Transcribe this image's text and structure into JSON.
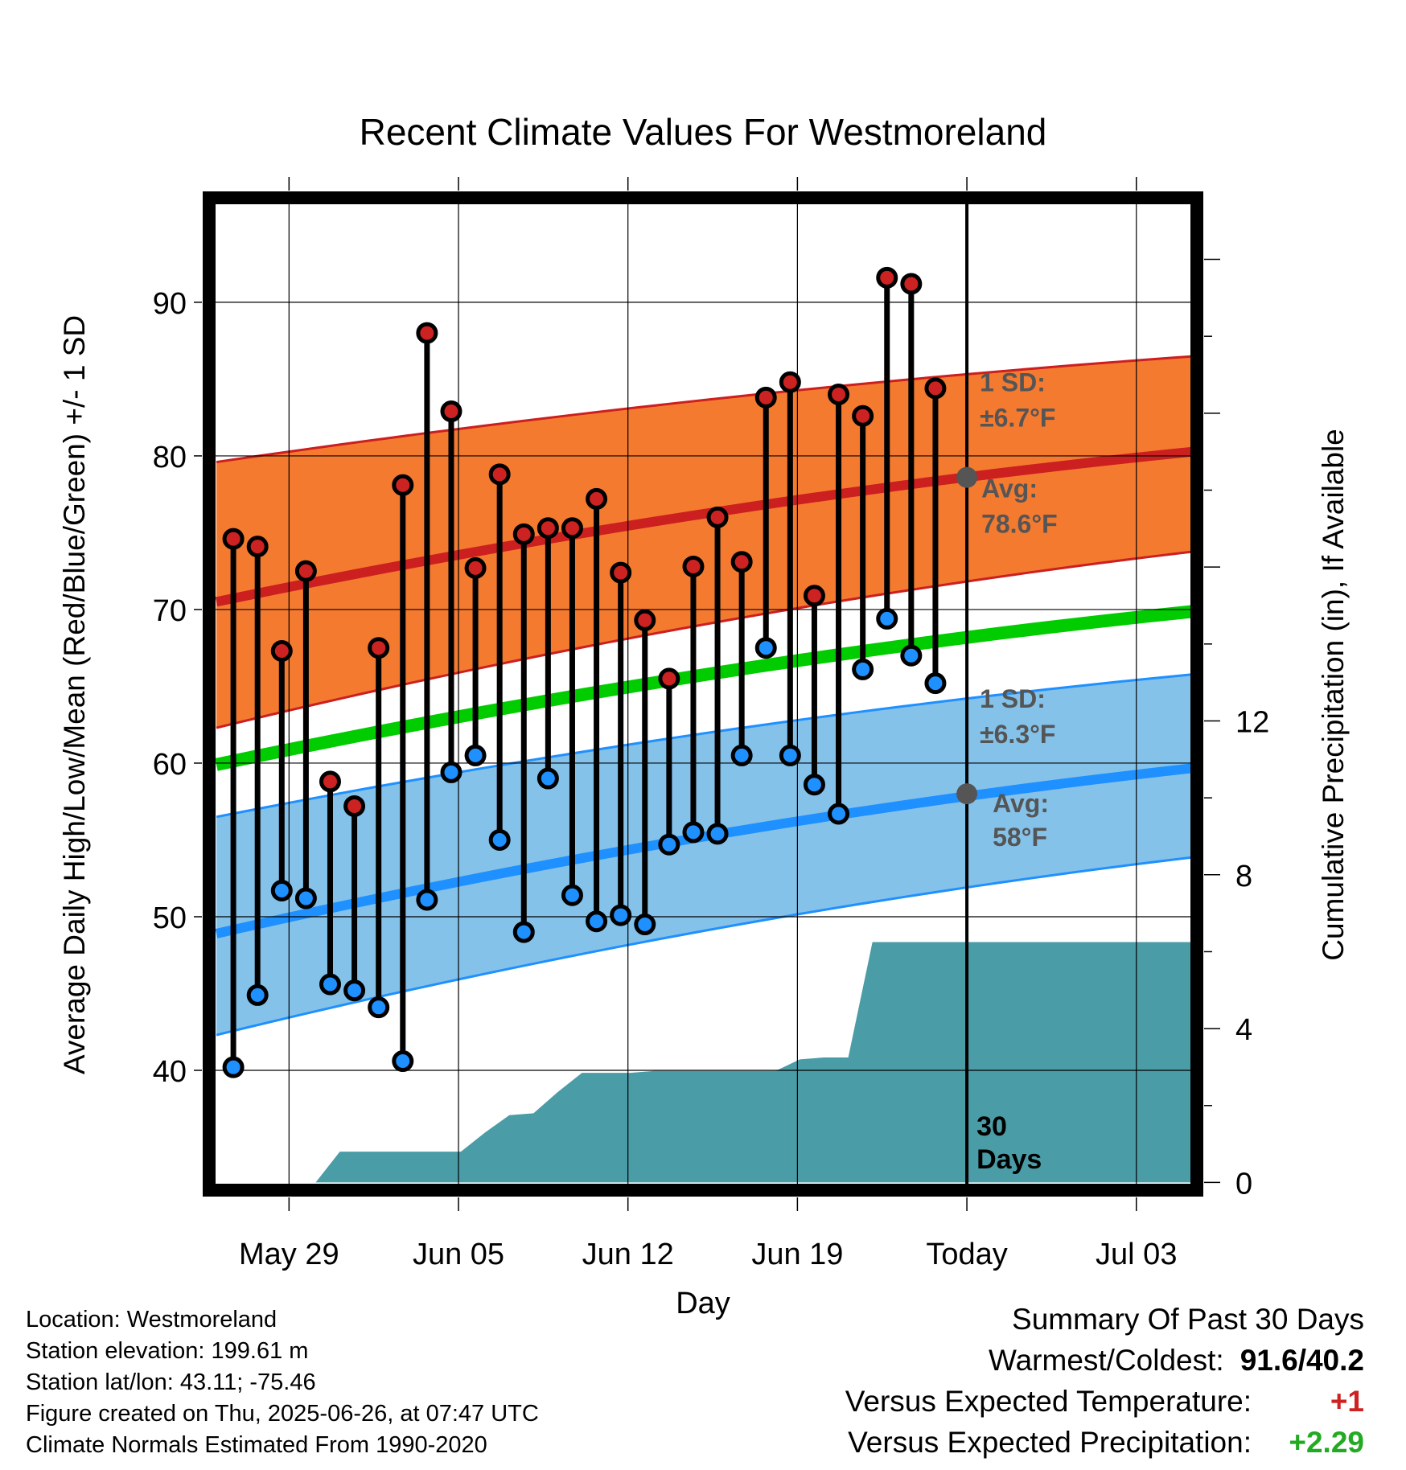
{
  "chart_data": {
    "type": "line",
    "title": "Recent Climate Values For Westmoreland",
    "xlabel": "Day",
    "ylabel": "Average Daily High/Low/Mean (Red/Blue/Green) +/- 1 SD",
    "y2label": "Cumulative Precipitation (in), If Available",
    "x_ticks": [
      "May 29",
      "Jun 05",
      "Jun 12",
      "Jun 19",
      "Today",
      "Jul 03"
    ],
    "x_tick_days": [
      3,
      10,
      17,
      24,
      31,
      38
    ],
    "xlim": [
      -0.3,
      40.5
    ],
    "ylim": [
      32.2,
      96.8
    ],
    "y_ticks": [
      40,
      50,
      60,
      70,
      80,
      90
    ],
    "y2lim": [
      -0.2,
      25.6
    ],
    "y2_ticks": [
      0,
      4,
      8,
      12
    ],
    "grid": true,
    "today_day": 31,
    "today_marker_label": "30 Days",
    "normals": {
      "days": [
        0,
        40.5
      ],
      "high_avg": [
        70.5,
        80.3
      ],
      "high_sd_upper": [
        79.6,
        86.5
      ],
      "high_sd_lower": [
        62.3,
        73.8
      ],
      "mean_avg": [
        59.9,
        69.9
      ],
      "low_avg": [
        48.9,
        59.7
      ],
      "low_sd_upper": [
        56.5,
        65.8
      ],
      "low_sd_lower": [
        42.3,
        53.9
      ]
    },
    "annotations": {
      "high_sd": "1 SD:",
      "high_sd_value": "±6.7°F",
      "high_avg": "Avg:",
      "high_avg_value": "78.6°F",
      "high_avg_point": 78.6,
      "low_sd": "1 SD:",
      "low_sd_value": "±6.3°F",
      "low_avg": "Avg:",
      "low_avg_value": "58°F",
      "low_avg_point": 58.0
    },
    "observations": {
      "days": [
        0.7,
        1.7,
        2.7,
        3.7,
        4.7,
        5.7,
        6.7,
        7.7,
        8.7,
        9.7,
        10.7,
        11.7,
        12.7,
        13.7,
        14.7,
        15.7,
        16.7,
        17.7,
        18.7,
        19.7,
        20.7,
        21.7,
        22.7,
        23.7,
        24.7,
        25.7,
        26.7,
        27.7,
        28.7,
        29.7
      ],
      "highs": [
        74.6,
        74.1,
        67.3,
        72.5,
        58.8,
        57.2,
        67.5,
        78.1,
        88.0,
        82.9,
        72.7,
        78.8,
        74.9,
        75.3,
        75.3,
        77.2,
        72.4,
        69.3,
        65.5,
        72.8,
        76.0,
        73.1,
        83.8,
        84.8,
        70.9,
        84.0,
        82.6,
        91.6,
        91.2,
        84.4
      ],
      "lows": [
        40.2,
        44.9,
        51.7,
        51.2,
        45.6,
        45.2,
        44.1,
        40.6,
        51.1,
        59.4,
        60.5,
        55.0,
        49.0,
        59.0,
        51.4,
        49.7,
        50.1,
        49.5,
        54.7,
        55.5,
        55.4,
        60.5,
        67.5,
        60.5,
        58.6,
        56.7,
        66.1,
        69.4,
        67.0,
        65.2
      ]
    },
    "precipitation": {
      "days": [
        1.1,
        2.1,
        3.1,
        4.1,
        5.1,
        6.1,
        7.1,
        8.1,
        9.1,
        10.1,
        11.1,
        12.1,
        13.1,
        14.1,
        15.1,
        16.1,
        17.1,
        18.1,
        19.1,
        20.1,
        21.1,
        22.1,
        23.1,
        24.1,
        25.1,
        26.1,
        27.1,
        40.5
      ],
      "cumulative": [
        0,
        0,
        0,
        0,
        0.8,
        0.8,
        0.8,
        0.8,
        0.8,
        0.8,
        1.3,
        1.75,
        1.8,
        2.35,
        2.85,
        2.85,
        2.85,
        2.9,
        2.9,
        2.9,
        2.9,
        2.9,
        2.9,
        3.2,
        3.25,
        3.25,
        6.25,
        6.25
      ]
    },
    "colors": {
      "high_band": "#f47a30",
      "high_line": "#cc1f1f",
      "mean_line": "#00cc00",
      "low_band": "#85c2ea",
      "low_line": "#1e90ff",
      "precip": "#4a9ca6",
      "high_marker": "#cc2222",
      "low_marker": "#1e90ff",
      "avg_point": "#555555",
      "warmer": "#cc2222",
      "wetter": "#22aa22"
    }
  },
  "footer": {
    "location": "Location: Westmoreland",
    "elevation": "Station elevation: 199.61 m",
    "latlon": "Station lat/lon: 43.11; -75.46",
    "created": "Figure created on Thu, 2025-06-26, at 07:47 UTC",
    "normals": "Climate Normals Estimated From 1990-2020"
  },
  "summary": {
    "title": "Summary Of Past 30 Days",
    "warm_cold_label": "Warmest/Coldest:",
    "warm_cold_value": "91.6/40.2",
    "temp_label": "Versus Expected Temperature:",
    "temp_value": "+1",
    "precip_label": "Versus Expected Precipitation:",
    "precip_value": "+2.29"
  }
}
